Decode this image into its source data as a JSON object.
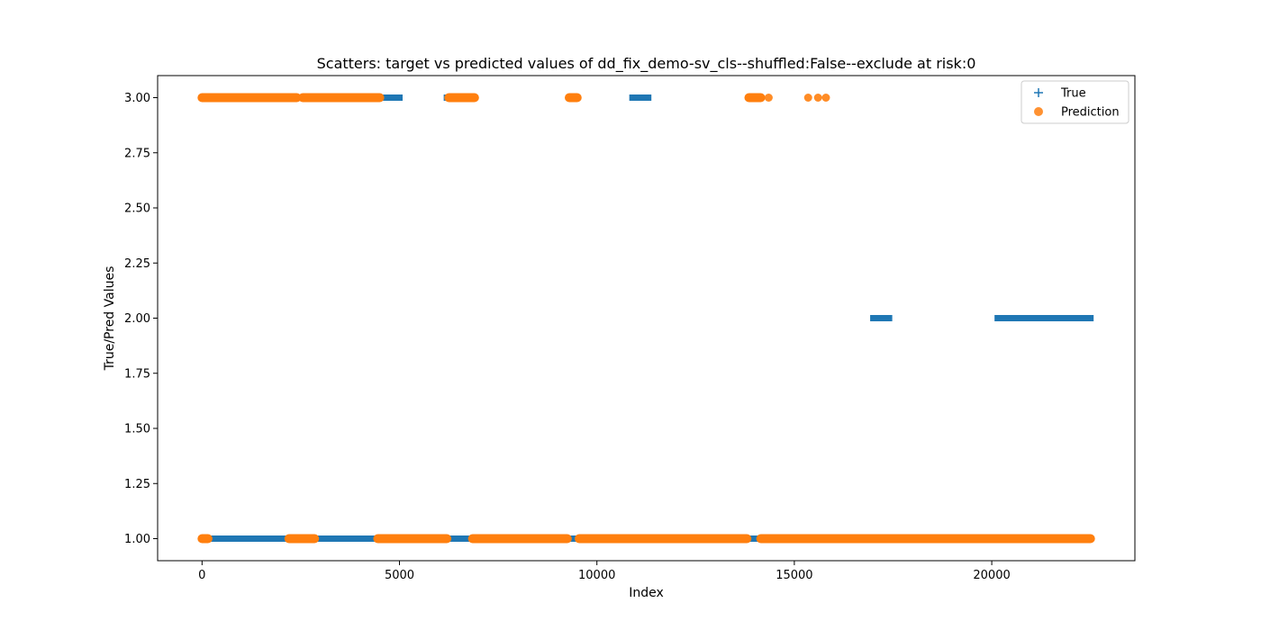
{
  "chart_data": {
    "type": "scatter",
    "title": "Scatters: target vs predicted values of dd_fix_demo-sv_cls--shuffled:False--exclude at risk:0",
    "xlabel": "Index",
    "ylabel": "True/Pred Values",
    "xlim": [
      -1125,
      23625
    ],
    "ylim": [
      0.9,
      3.1
    ],
    "x_ticks": [
      0,
      5000,
      10000,
      15000,
      20000
    ],
    "x_tick_labels": [
      "0",
      "5000",
      "10000",
      "15000",
      "20000"
    ],
    "y_ticks": [
      1.0,
      1.25,
      1.5,
      1.75,
      2.0,
      2.25,
      2.5,
      2.75,
      3.0
    ],
    "y_tick_labels": [
      "1.00",
      "1.25",
      "1.50",
      "1.75",
      "2.00",
      "2.25",
      "2.50",
      "2.75",
      "3.00"
    ],
    "grid": false,
    "legend": "top-right",
    "series": [
      {
        "name": "True",
        "marker": "plus",
        "color": "#1f77b4",
        "segments": [
          {
            "y": 3,
            "x_start": 0,
            "x_end": 5000
          },
          {
            "y": 3,
            "x_start": 6200,
            "x_end": 6900
          },
          {
            "y": 3,
            "x_start": 9300,
            "x_end": 9500
          },
          {
            "y": 3,
            "x_start": 10900,
            "x_end": 11300
          },
          {
            "y": 3,
            "x_start": 13850,
            "x_end": 14150
          },
          {
            "y": 2,
            "x_start": 17000,
            "x_end": 17400
          },
          {
            "y": 2,
            "x_start": 20150,
            "x_end": 22500
          },
          {
            "y": 1,
            "x_start": 0,
            "x_end": 22500
          }
        ],
        "points": []
      },
      {
        "name": "Prediction",
        "marker": "circle",
        "color": "#ff7f0e",
        "segments": [
          {
            "y": 3,
            "x_start": 0,
            "x_end": 2400
          },
          {
            "y": 3,
            "x_start": 2550,
            "x_end": 4500
          },
          {
            "y": 3,
            "x_start": 6250,
            "x_end": 6900
          },
          {
            "y": 3,
            "x_start": 9300,
            "x_end": 9500
          },
          {
            "y": 3,
            "x_start": 13850,
            "x_end": 14150
          },
          {
            "y": 1,
            "x_start": 0,
            "x_end": 150
          },
          {
            "y": 1,
            "x_start": 2200,
            "x_end": 2850
          },
          {
            "y": 1,
            "x_start": 4450,
            "x_end": 6200
          },
          {
            "y": 1,
            "x_start": 6850,
            "x_end": 9250
          },
          {
            "y": 1,
            "x_start": 9550,
            "x_end": 13800
          },
          {
            "y": 1,
            "x_start": 14150,
            "x_end": 22500
          }
        ],
        "points": [
          {
            "x": 14350,
            "y": 3
          },
          {
            "x": 15350,
            "y": 3
          },
          {
            "x": 15600,
            "y": 3
          },
          {
            "x": 15800,
            "y": 3
          }
        ]
      }
    ]
  }
}
